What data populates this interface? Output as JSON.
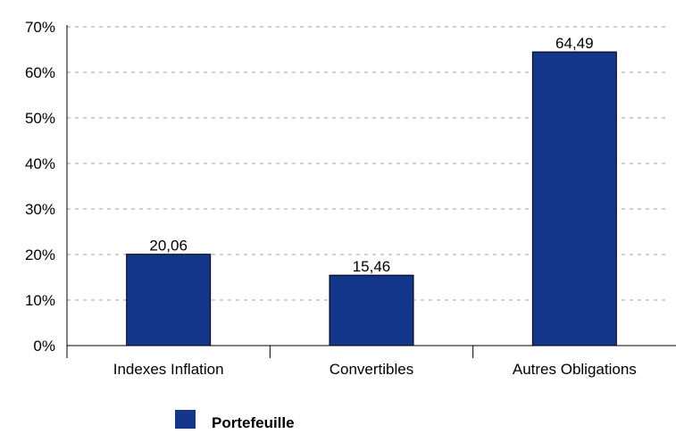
{
  "chart_data": {
    "type": "bar",
    "categories": [
      "Indexes Inflation",
      "Convertibles",
      "Autres Obligations"
    ],
    "series": [
      {
        "name": "Portefeuille",
        "values": [
          20.06,
          15.46,
          64.49
        ],
        "color": "#13358A"
      }
    ],
    "data_labels": [
      "20,06",
      "15,46",
      "64,49"
    ],
    "title": "",
    "xlabel": "",
    "ylabel": "",
    "ylim": [
      0,
      70
    ],
    "y_ticks": [
      0,
      10,
      20,
      30,
      40,
      50,
      60,
      70
    ],
    "y_tick_labels": [
      "0%",
      "10%",
      "20%",
      "30%",
      "40%",
      "50%",
      "60%",
      "70%"
    ],
    "grid": true,
    "grid_style": "dashed",
    "grid_color": "#D0D0D0",
    "legend_position": "bottom"
  }
}
